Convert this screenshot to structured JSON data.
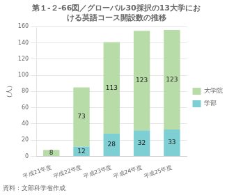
{
  "chart_data": {
    "type": "bar",
    "title": [
      "第１-２-66図／グローバル30採択の13大学にお",
      "ける英語コース開設数の推移"
    ],
    "categories": [
      "平成21年度",
      "平成22年度",
      "平成23年度",
      "平成24年度",
      "平成25年度"
    ],
    "series": [
      {
        "name": "学部",
        "color": "#7ecfd4",
        "values": [
          0,
          12,
          28,
          32,
          33
        ],
        "value_labels": [
          null,
          "12",
          "28",
          "32",
          "33"
        ]
      },
      {
        "name": "大学院",
        "color": "#b8dca8",
        "values": [
          8,
          73,
          113,
          123,
          123
        ]
      }
    ],
    "stacked": true,
    "data_labels": true,
    "ylabel": "（人）",
    "ylim": [
      0,
      160
    ],
    "yticks": [
      0,
      20,
      40,
      60,
      80,
      100,
      120,
      140,
      160
    ],
    "grid": true,
    "legend": "right",
    "annotation": "資料：文部科学省作成"
  }
}
